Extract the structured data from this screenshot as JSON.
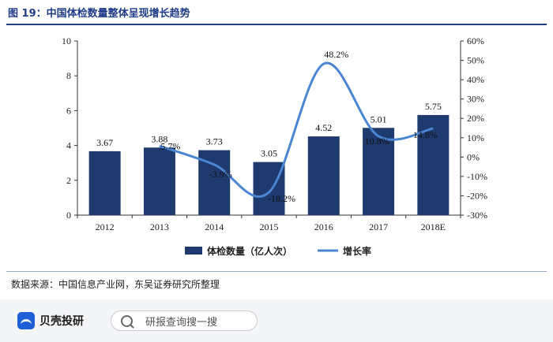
{
  "figure": {
    "title": "图 19：中国体检数量整体呈现增长趋势",
    "source": "数据来源：中国信息产业网，东吴证券研究所整理"
  },
  "chart_data": {
    "type": "bar+line",
    "categories": [
      "2012",
      "2013",
      "2014",
      "2015",
      "2016",
      "2017",
      "2018E"
    ],
    "series": [
      {
        "name": "体检数量（亿人次）",
        "type": "bar",
        "axis": "left",
        "values": [
          3.67,
          3.88,
          3.73,
          3.05,
          4.52,
          5.01,
          5.75
        ],
        "labels": [
          "3.67",
          "3.88",
          "3.73",
          "3.05",
          "4.52",
          "5.01",
          "5.75"
        ]
      },
      {
        "name": "增长率",
        "type": "line",
        "axis": "right",
        "values": [
          null,
          5.7,
          -3.9,
          -18.2,
          48.2,
          10.8,
          14.8
        ],
        "labels": [
          "",
          "5.7%",
          "-3.9%",
          "-18.2%",
          "48.2%",
          "10.8%",
          "14.8%"
        ]
      }
    ],
    "y_left": {
      "min": 0,
      "max": 10,
      "ticks": [
        "0",
        "2",
        "4",
        "6",
        "8",
        "10"
      ]
    },
    "y_right": {
      "min": -30,
      "max": 60,
      "ticks": [
        "-30%",
        "-20%",
        "-10%",
        "0%",
        "10%",
        "20%",
        "30%",
        "40%",
        "50%",
        "60%"
      ]
    },
    "legend_position": "bottom",
    "grid": false,
    "colors": {
      "bar": "#1f3a6e",
      "line": "#4a86d4"
    }
  },
  "footer": {
    "brand": "贝壳投研",
    "search_placeholder": "研报查询搜一搜"
  }
}
